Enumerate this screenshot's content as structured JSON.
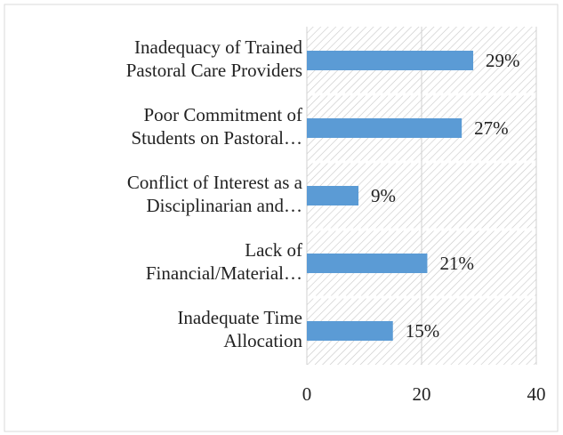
{
  "chart_data": {
    "type": "bar",
    "orientation": "horizontal",
    "categories": [
      [
        "Inadequacy of Trained",
        "Pastoral Care Providers"
      ],
      [
        "Poor Commitment of",
        "Students on Pastoral…"
      ],
      [
        "Conflict of Interest as a",
        "Disciplinarian and…"
      ],
      [
        "Lack of",
        "Financial/Material…"
      ],
      [
        "Inadequate Time",
        "Allocation"
      ]
    ],
    "values": [
      29,
      27,
      9,
      21,
      15
    ],
    "value_labels": [
      "29%",
      "27%",
      "9%",
      "21%",
      "15%"
    ],
    "color": "#5b9bd5",
    "xlim": [
      0,
      40
    ],
    "xticks": [
      0,
      20,
      40
    ],
    "grid": true
  }
}
